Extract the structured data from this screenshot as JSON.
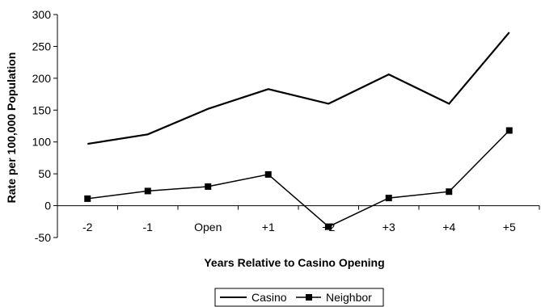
{
  "chart_data": {
    "type": "line",
    "title": "",
    "xlabel": "Years Relative to Casino Opening",
    "ylabel": "Rate per 100,000 Population",
    "categories": [
      "-2",
      "-1",
      "Open",
      "+1",
      "+2",
      "+3",
      "+4",
      "+5"
    ],
    "ylim": [
      -50,
      300
    ],
    "yticks": [
      -50,
      0,
      50,
      100,
      150,
      200,
      250,
      300
    ],
    "grid": false,
    "legend_position": "bottom",
    "series": [
      {
        "name": "Casino",
        "values": [
          97,
          112,
          152,
          183,
          160,
          206,
          160,
          272
        ],
        "marker": "none",
        "color": "#000000"
      },
      {
        "name": "Neighbor",
        "values": [
          11,
          23,
          30,
          49,
          -33,
          12,
          22,
          118
        ],
        "marker": "square",
        "color": "#000000"
      }
    ]
  }
}
